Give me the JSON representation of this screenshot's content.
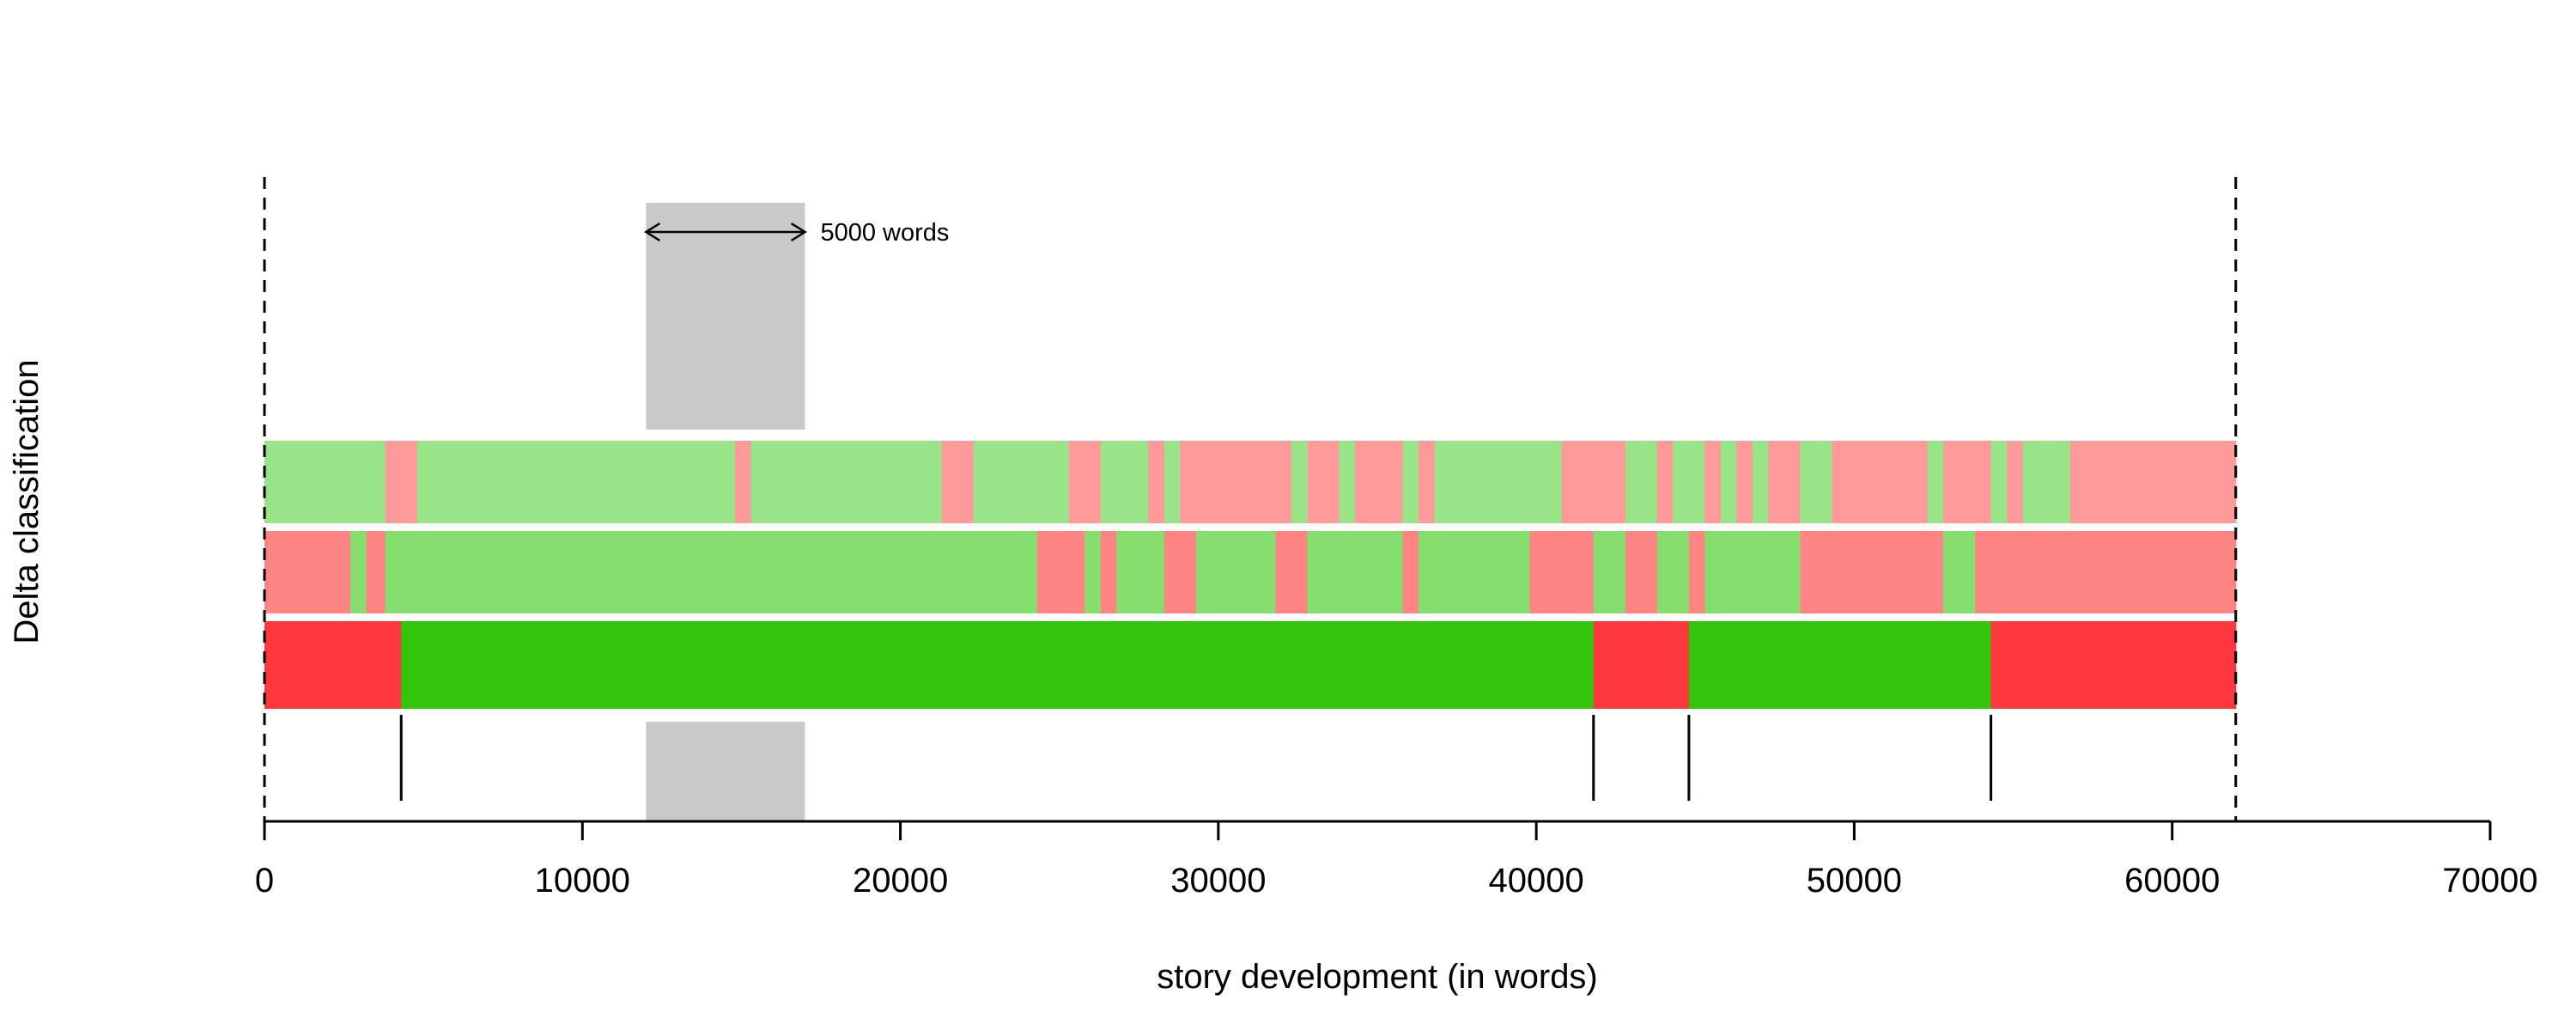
{
  "chart_data": {
    "type": "timeline",
    "title": "",
    "xlabel": "story development (in words)",
    "ylabel": "Delta classification",
    "xlim": [
      0,
      70000
    ],
    "x_ticks": [
      0,
      10000,
      20000,
      30000,
      40000,
      50000,
      60000,
      70000
    ],
    "x_tick_labels": [
      "0",
      "10000",
      "20000",
      "30000",
      "40000",
      "50000",
      "60000",
      "70000"
    ],
    "grid": false,
    "story_end": 62000,
    "window": {
      "start": 12000,
      "end": 17000,
      "label": "5000 words"
    },
    "colors": {
      "row1": {
        "green": "#99e388",
        "red": "#ff9a9a"
      },
      "row2": {
        "green": "#85de6e",
        "red": "#ff8585"
      },
      "row3": {
        "green": "#33c40c",
        "red": "#ff383d"
      },
      "window": "#c9c9c9"
    },
    "rows": [
      {
        "segments": [
          {
            "start": 0,
            "end": 3800,
            "class": "green"
          },
          {
            "start": 3800,
            "end": 4800,
            "class": "red"
          },
          {
            "start": 4800,
            "end": 14800,
            "class": "green"
          },
          {
            "start": 14800,
            "end": 15300,
            "class": "red"
          },
          {
            "start": 15300,
            "end": 21300,
            "class": "green"
          },
          {
            "start": 21300,
            "end": 22300,
            "class": "red"
          },
          {
            "start": 22300,
            "end": 25300,
            "class": "green"
          },
          {
            "start": 25300,
            "end": 26300,
            "class": "red"
          },
          {
            "start": 26300,
            "end": 27800,
            "class": "green"
          },
          {
            "start": 27800,
            "end": 28300,
            "class": "red"
          },
          {
            "start": 28300,
            "end": 28800,
            "class": "green"
          },
          {
            "start": 28800,
            "end": 32300,
            "class": "red"
          },
          {
            "start": 32300,
            "end": 32800,
            "class": "green"
          },
          {
            "start": 32800,
            "end": 33800,
            "class": "red"
          },
          {
            "start": 33800,
            "end": 34300,
            "class": "green"
          },
          {
            "start": 34300,
            "end": 35800,
            "class": "red"
          },
          {
            "start": 35800,
            "end": 36300,
            "class": "green"
          },
          {
            "start": 36300,
            "end": 36800,
            "class": "red"
          },
          {
            "start": 36800,
            "end": 40800,
            "class": "green"
          },
          {
            "start": 40800,
            "end": 42800,
            "class": "red"
          },
          {
            "start": 42800,
            "end": 43800,
            "class": "green"
          },
          {
            "start": 43800,
            "end": 44300,
            "class": "red"
          },
          {
            "start": 44300,
            "end": 45300,
            "class": "green"
          },
          {
            "start": 45300,
            "end": 45800,
            "class": "red"
          },
          {
            "start": 45800,
            "end": 46300,
            "class": "green"
          },
          {
            "start": 46300,
            "end": 46800,
            "class": "red"
          },
          {
            "start": 46800,
            "end": 47300,
            "class": "green"
          },
          {
            "start": 47300,
            "end": 48300,
            "class": "red"
          },
          {
            "start": 48300,
            "end": 49300,
            "class": "green"
          },
          {
            "start": 49300,
            "end": 52300,
            "class": "red"
          },
          {
            "start": 52300,
            "end": 52800,
            "class": "green"
          },
          {
            "start": 52800,
            "end": 54300,
            "class": "red"
          },
          {
            "start": 54300,
            "end": 54800,
            "class": "green"
          },
          {
            "start": 54800,
            "end": 55300,
            "class": "red"
          },
          {
            "start": 55300,
            "end": 56800,
            "class": "green"
          },
          {
            "start": 56800,
            "end": 62000,
            "class": "red"
          }
        ]
      },
      {
        "segments": [
          {
            "start": 0,
            "end": 2700,
            "class": "red"
          },
          {
            "start": 2700,
            "end": 3200,
            "class": "green"
          },
          {
            "start": 3200,
            "end": 3800,
            "class": "red"
          },
          {
            "start": 3800,
            "end": 24300,
            "class": "green"
          },
          {
            "start": 24300,
            "end": 25800,
            "class": "red"
          },
          {
            "start": 25800,
            "end": 26300,
            "class": "green"
          },
          {
            "start": 26300,
            "end": 26800,
            "class": "red"
          },
          {
            "start": 26800,
            "end": 28300,
            "class": "green"
          },
          {
            "start": 28300,
            "end": 29300,
            "class": "red"
          },
          {
            "start": 29300,
            "end": 31800,
            "class": "green"
          },
          {
            "start": 31800,
            "end": 32800,
            "class": "red"
          },
          {
            "start": 32800,
            "end": 35800,
            "class": "green"
          },
          {
            "start": 35800,
            "end": 36300,
            "class": "red"
          },
          {
            "start": 36300,
            "end": 39800,
            "class": "green"
          },
          {
            "start": 39800,
            "end": 41800,
            "class": "red"
          },
          {
            "start": 41800,
            "end": 42800,
            "class": "green"
          },
          {
            "start": 42800,
            "end": 43800,
            "class": "red"
          },
          {
            "start": 43800,
            "end": 44800,
            "class": "green"
          },
          {
            "start": 44800,
            "end": 45300,
            "class": "red"
          },
          {
            "start": 45300,
            "end": 48300,
            "class": "green"
          },
          {
            "start": 48300,
            "end": 52800,
            "class": "red"
          },
          {
            "start": 52800,
            "end": 53800,
            "class": "green"
          },
          {
            "start": 53800,
            "end": 62000,
            "class": "red"
          }
        ]
      },
      {
        "segments": [
          {
            "start": 0,
            "end": 4300,
            "class": "red"
          },
          {
            "start": 4300,
            "end": 41800,
            "class": "green"
          },
          {
            "start": 41800,
            "end": 44800,
            "class": "red"
          },
          {
            "start": 44800,
            "end": 54300,
            "class": "green"
          },
          {
            "start": 54300,
            "end": 62000,
            "class": "red"
          }
        ]
      }
    ],
    "change_points": [
      4300,
      41800,
      44800,
      54300
    ]
  }
}
